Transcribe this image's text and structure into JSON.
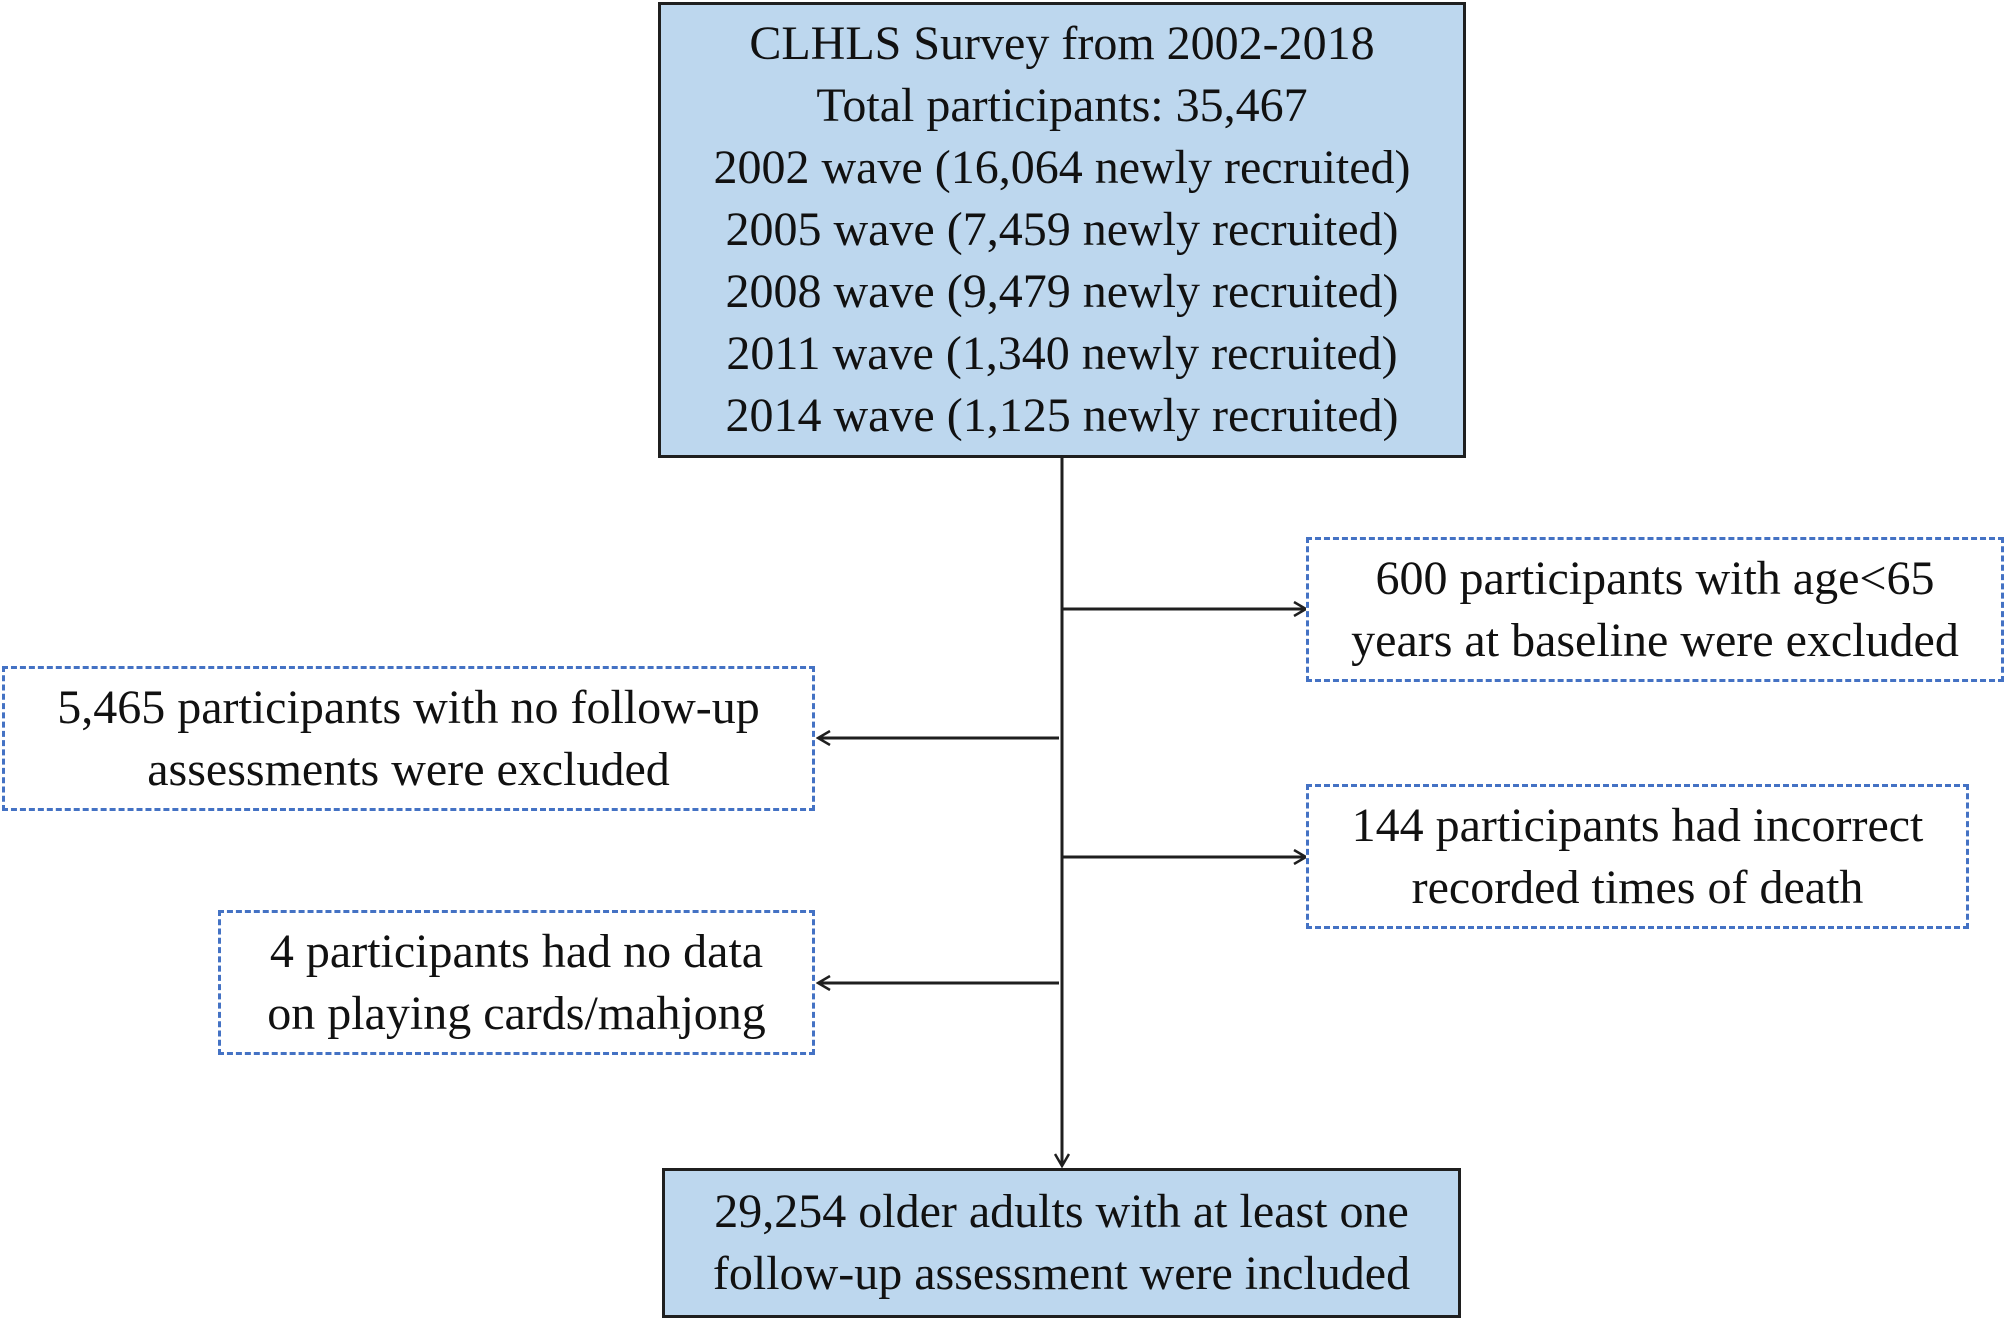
{
  "top_box": {
    "lines": [
      "CLHLS Survey from 2002-2018",
      "Total participants: 35,467",
      "2002 wave (16,064 newly recruited)",
      "2005 wave (7,459 newly recruited)",
      "2008 wave (9,479 newly recruited)",
      "2011 wave (1,340 newly recruited)",
      "2014 wave (1,125 newly recruited)"
    ]
  },
  "exclusions": {
    "age": [
      "600 participants with age<65",
      "years at baseline were excluded"
    ],
    "no_followup": [
      "5,465 participants with no follow-up",
      "assessments were excluded"
    ],
    "death_time": [
      "144 participants had incorrect",
      "recorded times of death"
    ],
    "no_cards": [
      "4 participants had no data",
      "on playing cards/mahjong"
    ]
  },
  "final_box": {
    "lines": [
      "29,254 older adults with at least one",
      "follow-up assessment were included"
    ]
  },
  "colors": {
    "main_fill": "#bdd7ee",
    "main_border": "#1f1f1f",
    "exclusion_border": "#4472c4",
    "connector": "#1f1f1f"
  }
}
